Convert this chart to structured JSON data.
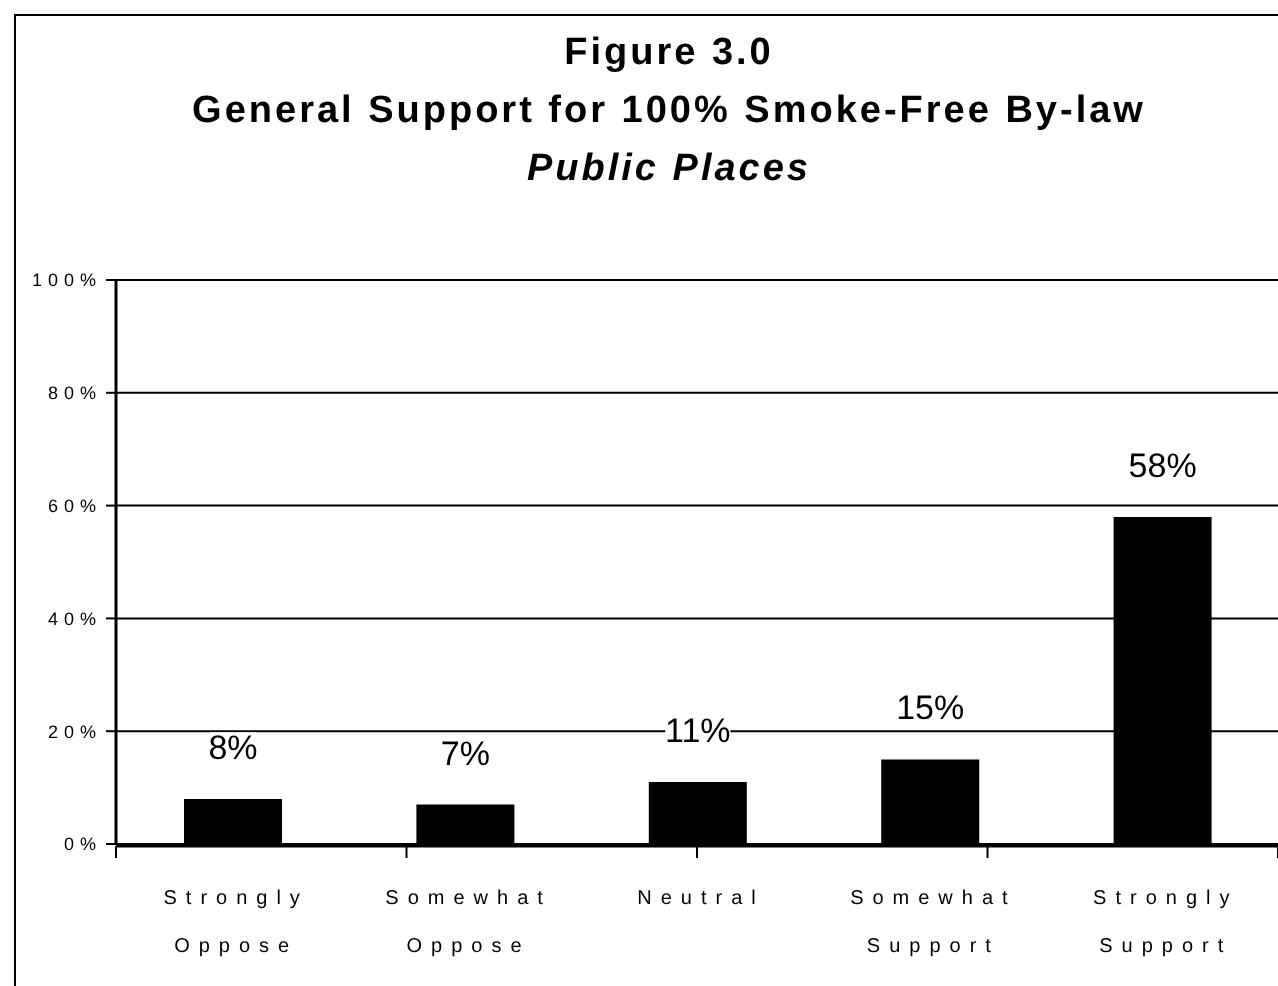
{
  "chart_data": {
    "type": "bar",
    "title": "Figure 3.0\nGeneral Support for 100% Smoke-Free By-law",
    "subtitle": "Public Places",
    "categories": [
      "Strongly Oppose",
      "Somewhat Oppose",
      "Neutral",
      "Somewhat Support",
      "Strongly Support"
    ],
    "values": [
      8,
      7,
      11,
      15,
      58
    ],
    "value_labels": [
      "8%",
      "7%",
      "11%",
      "15%",
      "58%"
    ],
    "color": "#000000",
    "ylim": [
      0,
      100
    ],
    "yticks": [
      {
        "value": 0,
        "label": "0%"
      },
      {
        "value": 20,
        "label": "20%"
      },
      {
        "value": 40,
        "label": "40%"
      },
      {
        "value": 60,
        "label": "60%"
      },
      {
        "value": 80,
        "label": "80%"
      },
      {
        "value": 100,
        "label": "100%"
      }
    ],
    "grid": "y"
  }
}
